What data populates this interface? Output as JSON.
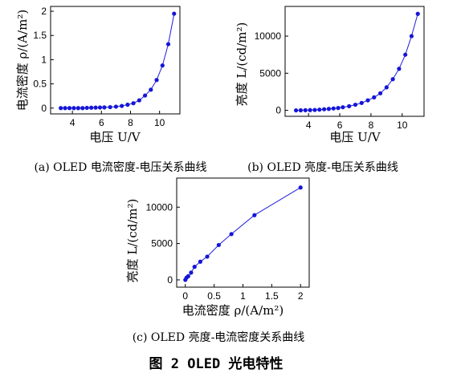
{
  "figure_title": "图 2 OLED 光电特性",
  "colors": {
    "series": "#1515d8",
    "line": "#1f1fdd",
    "axis": "#000000"
  },
  "chart_data": [
    {
      "id": "a",
      "type": "line",
      "caption": "(a) OLED 电流密度-电压关系曲线",
      "xlabel": "电压 U/V",
      "ylabel": "电流密度 ρ/(A/m²)",
      "xlim": [
        2.5,
        11.4
      ],
      "ylim": [
        -0.12,
        2.1
      ],
      "xticks": [
        4,
        6,
        8,
        10
      ],
      "yticks": [
        0,
        0.5,
        1,
        1.5,
        2
      ],
      "ytick_labels": [
        "0",
        "0.5",
        "1",
        "1.5",
        "2"
      ],
      "grid": false,
      "x": [
        3.2,
        3.5,
        3.8,
        4.1,
        4.4,
        4.7,
        5.0,
        5.3,
        5.6,
        5.9,
        6.2,
        6.6,
        7.0,
        7.4,
        7.8,
        8.2,
        8.6,
        9.0,
        9.4,
        9.8,
        10.2,
        10.6,
        11.0
      ],
      "y": [
        0.0,
        0.0,
        0.0,
        0.0,
        0.0,
        0.0,
        0.005,
        0.008,
        0.01,
        0.012,
        0.015,
        0.02,
        0.03,
        0.045,
        0.07,
        0.1,
        0.16,
        0.26,
        0.38,
        0.58,
        0.88,
        1.32,
        1.95
      ]
    },
    {
      "id": "b",
      "type": "line",
      "caption": "(b) OLED 亮度-电压关系曲线",
      "xlabel": "电压 U/V",
      "ylabel": "亮度 L/(cd/m²)",
      "xlim": [
        2.5,
        11.4
      ],
      "ylim": [
        -800,
        14000
      ],
      "xticks": [
        4,
        6,
        8,
        10
      ],
      "yticks": [
        0,
        5000,
        10000
      ],
      "ytick_labels": [
        "0",
        "5000",
        "10000"
      ],
      "grid": false,
      "x": [
        3.2,
        3.5,
        3.8,
        4.1,
        4.4,
        4.7,
        5.0,
        5.3,
        5.6,
        5.9,
        6.2,
        6.6,
        7.0,
        7.4,
        7.8,
        8.2,
        8.6,
        9.0,
        9.4,
        9.8,
        10.2,
        10.6,
        11.0
      ],
      "y": [
        0,
        10,
        20,
        40,
        60,
        100,
        150,
        200,
        260,
        320,
        420,
        560,
        760,
        1000,
        1350,
        1750,
        2300,
        3100,
        4200,
        5600,
        7500,
        10000,
        13000
      ]
    },
    {
      "id": "c",
      "type": "line",
      "caption": "(c) OLED 亮度-电流密度关系曲线",
      "xlabel": "电流密度 ρ/(A/m²)",
      "ylabel": "亮度 L/(cd/m²)",
      "xlim": [
        -0.15,
        2.15
      ],
      "ylim": [
        -1000,
        14000
      ],
      "xticks": [
        0,
        0.5,
        1,
        1.5,
        2
      ],
      "xtick_labels": [
        "0",
        "0.5",
        "1",
        "1.5",
        "2"
      ],
      "yticks": [
        0,
        5000,
        10000
      ],
      "ytick_labels": [
        "0",
        "5000",
        "10000"
      ],
      "grid": false,
      "x": [
        0.0,
        0.02,
        0.05,
        0.1,
        0.16,
        0.26,
        0.38,
        0.58,
        0.8,
        1.2,
        2.0
      ],
      "y": [
        0,
        300,
        500,
        1000,
        1800,
        2500,
        3200,
        4800,
        6300,
        8900,
        12700
      ]
    }
  ]
}
